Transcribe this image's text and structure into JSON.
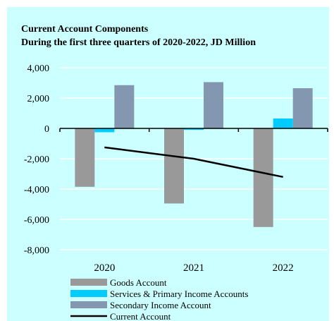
{
  "chart_data": {
    "type": "bar",
    "title": "Current Account Components",
    "subtitle": "During the first three quarters of 2020-2022, JD Million",
    "categories": [
      "2020",
      "2021",
      "2022"
    ],
    "ylim": [
      -8000,
      4000
    ],
    "yticks": [
      "4,000",
      "2,000",
      "0",
      "-2,000",
      "-4,000",
      "-6,000",
      "-8,000"
    ],
    "ytick_values": [
      4000,
      2000,
      0,
      -2000,
      -4000,
      -6000,
      -8000
    ],
    "grid": true,
    "legend_position": "bottom",
    "series": [
      {
        "name": "Goods Account",
        "type": "bar",
        "color": "#999999",
        "values": [
          -3850,
          -4950,
          -6500
        ]
      },
      {
        "name": "Services & Primary Income Accounts",
        "type": "bar",
        "color": "#00CCFF",
        "values": [
          -250,
          -100,
          650
        ]
      },
      {
        "name": "Secondary Income Account",
        "type": "bar",
        "color": "#8497B0",
        "values": [
          2850,
          3050,
          2650
        ]
      },
      {
        "name": "Current Account",
        "type": "line",
        "color": "#000000",
        "values": [
          -1250,
          -2000,
          -3200
        ]
      }
    ]
  },
  "colors": {
    "background": "#CCFFFF",
    "gridline": "#FFFFFF",
    "axis": "#000000"
  }
}
